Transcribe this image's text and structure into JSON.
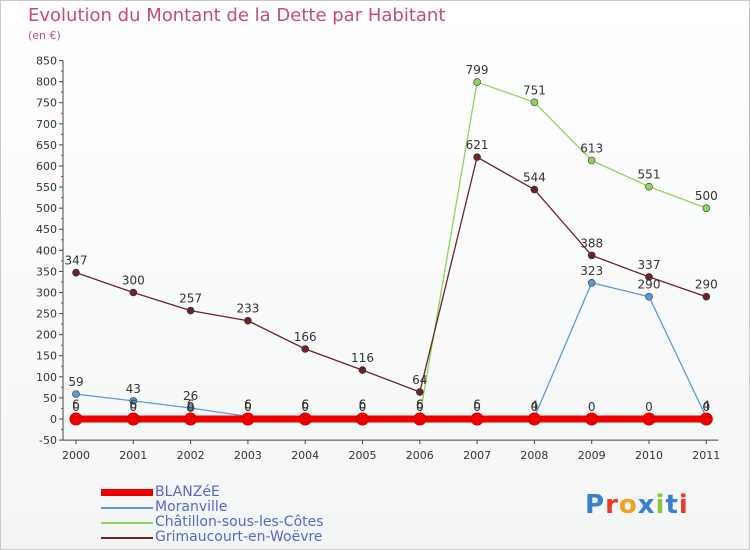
{
  "header": {
    "title": "Evolution du Montant de la Dette par Habitant",
    "subtitle": "(en €)"
  },
  "logo": {
    "text": "Proxiti",
    "letter_colors": [
      "#3a7fcf",
      "#e8392a",
      "#f0a21c",
      "#3a7fcf",
      "#8cc63f",
      "#3a7fcf",
      "#e8392a"
    ]
  },
  "chart_data": {
    "type": "line",
    "title": "Evolution du Montant de la Dette par Habitant",
    "subtitle": "(en €)",
    "xlabel": "",
    "ylabel": "",
    "categories": [
      "2000",
      "2001",
      "2002",
      "2003",
      "2004",
      "2005",
      "2006",
      "2007",
      "2008",
      "2009",
      "2010",
      "2011"
    ],
    "ylim": [
      -50,
      850
    ],
    "yticks": [
      -50,
      0,
      50,
      100,
      150,
      200,
      250,
      300,
      350,
      400,
      450,
      500,
      550,
      600,
      650,
      700,
      750,
      800,
      850
    ],
    "grid": false,
    "legend_position": "bottom-left",
    "series": [
      {
        "name": "BLANZéE",
        "color": "#ee0000",
        "values": [
          0,
          0,
          0,
          0,
          0,
          0,
          0,
          0,
          0,
          0,
          0,
          0
        ]
      },
      {
        "name": "Moranville",
        "color": "#5b9bd5",
        "values": [
          59,
          43,
          26,
          6,
          6,
          6,
          6,
          6,
          4,
          323,
          290,
          4
        ]
      },
      {
        "name": "Châtillon-sous-les-Côtes",
        "color": "#8cd55b",
        "values": [
          6,
          6,
          6,
          6,
          6,
          6,
          6,
          799,
          751,
          613,
          551,
          500
        ]
      },
      {
        "name": "Grimaucourt-en-Woëvre",
        "color": "#6b2228",
        "values": [
          347,
          300,
          257,
          233,
          166,
          116,
          64,
          621,
          544,
          388,
          337,
          290
        ]
      }
    ],
    "data_labels": [
      {
        "series": 0,
        "values": [
          "0",
          "0",
          "0",
          "0",
          "0",
          "0",
          "0",
          "0",
          "0",
          "0",
          "0",
          "0"
        ]
      },
      {
        "series": 1,
        "values": [
          "59",
          "43",
          "26",
          "6",
          "6",
          "6",
          "6",
          "6",
          "4",
          "323",
          "290",
          "4"
        ]
      },
      {
        "series": 2,
        "values": [
          "6",
          "6",
          "6",
          "6",
          "6",
          "6",
          "6",
          "799",
          "751",
          "613",
          "551",
          "500"
        ]
      },
      {
        "series": 3,
        "values": [
          "347",
          "300",
          "257",
          "233",
          "166",
          "116",
          "64",
          "621",
          "544",
          "388",
          "337",
          "290"
        ]
      }
    ]
  }
}
